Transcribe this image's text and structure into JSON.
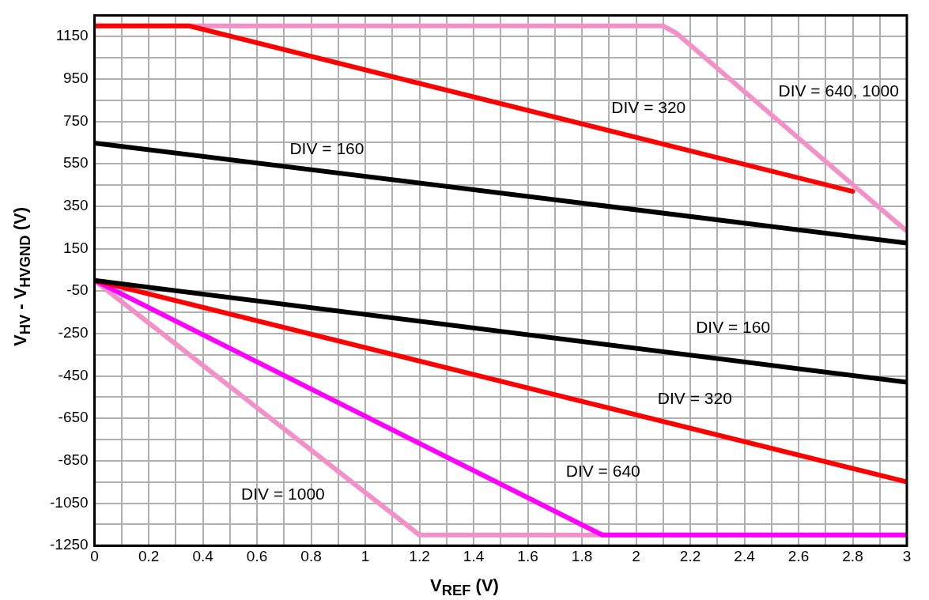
{
  "chart_data": {
    "type": "line",
    "xlabel": "V$_{REF}$ (V)",
    "ylabel": "V$_{HV}$ - V$_{HVGND}$ (V)",
    "xlim": [
      0,
      3
    ],
    "ylim": [
      -1250,
      1250
    ],
    "xticks": [
      0,
      {
        "value": 0.1,
        "label": null
      },
      0.2,
      {
        "value": 0.3,
        "label": null
      },
      0.4,
      {
        "value": 0.5,
        "label": null
      },
      0.6,
      {
        "value": 0.7,
        "label": null
      },
      0.8,
      {
        "value": 0.9,
        "label": null
      },
      1,
      {
        "value": 1.1,
        "label": null
      },
      1.2,
      {
        "value": 1.3,
        "label": null
      },
      1.4,
      {
        "value": 1.5,
        "label": null
      },
      1.6,
      {
        "value": 1.7,
        "label": null
      },
      1.8,
      {
        "value": 1.9,
        "label": null
      },
      2,
      {
        "value": 2.1,
        "label": null
      },
      2.2,
      {
        "value": 2.3,
        "label": null
      },
      2.4,
      {
        "value": 2.5,
        "label": null
      },
      2.6,
      {
        "value": 2.7,
        "label": null
      },
      2.8,
      {
        "value": 2.9,
        "label": null
      },
      3
    ],
    "yticks": [
      -1250,
      {
        "value": -1150,
        "label": null
      },
      -1050,
      {
        "value": -950,
        "label": null
      },
      -850,
      {
        "value": -750,
        "label": null
      },
      -650,
      {
        "value": -550,
        "label": null
      },
      -450,
      {
        "value": -350,
        "label": null
      },
      -250,
      {
        "value": -150,
        "label": null
      },
      -50,
      {
        "value": 50,
        "label": null
      },
      150,
      {
        "value": 250,
        "label": null
      },
      350,
      {
        "value": 450,
        "label": null
      },
      550,
      {
        "value": 650,
        "label": null
      },
      750,
      {
        "value": 850,
        "label": null
      },
      950,
      {
        "value": 1050,
        "label": null
      },
      1150,
      {
        "value": 1250,
        "label": null
      }
    ],
    "grid": true,
    "legend": false,
    "marker": "none",
    "line_style": "solid",
    "series": [
      {
        "name": "DIV = 160",
        "color": "#000000",
        "x": [
          0,
          3
        ],
        "values": [
          648,
          176
        ]
      },
      {
        "name": "DIV = 160",
        "color": "#000000",
        "x": [
          0,
          3
        ],
        "values": [
          0,
          -480
        ]
      },
      {
        "name": "DIV = 320",
        "color": "#ff0000",
        "x": [
          0,
          0.35,
          2.8
        ],
        "values": [
          1200,
          1200,
          420
        ]
      },
      {
        "name": "DIV = 320",
        "color": "#ff0000",
        "x": [
          0,
          3
        ],
        "values": [
          0,
          -950
        ]
      },
      {
        "name": "DIV = 640",
        "color": "#ff00ff",
        "x": [
          0,
          1.875,
          3
        ],
        "values": [
          0,
          -1200,
          -1200
        ]
      },
      {
        "name": "DIV = 640, 1000",
        "color": "#f490c8",
        "x": [
          0,
          2.1,
          2.15,
          3
        ],
        "values": [
          1200,
          1200,
          1165,
          232
        ]
      },
      {
        "name": "DIV = 1000",
        "color": "#f490c8",
        "x": [
          0,
          1.2,
          3
        ],
        "values": [
          0,
          -1200,
          -1200
        ]
      }
    ]
  }
}
